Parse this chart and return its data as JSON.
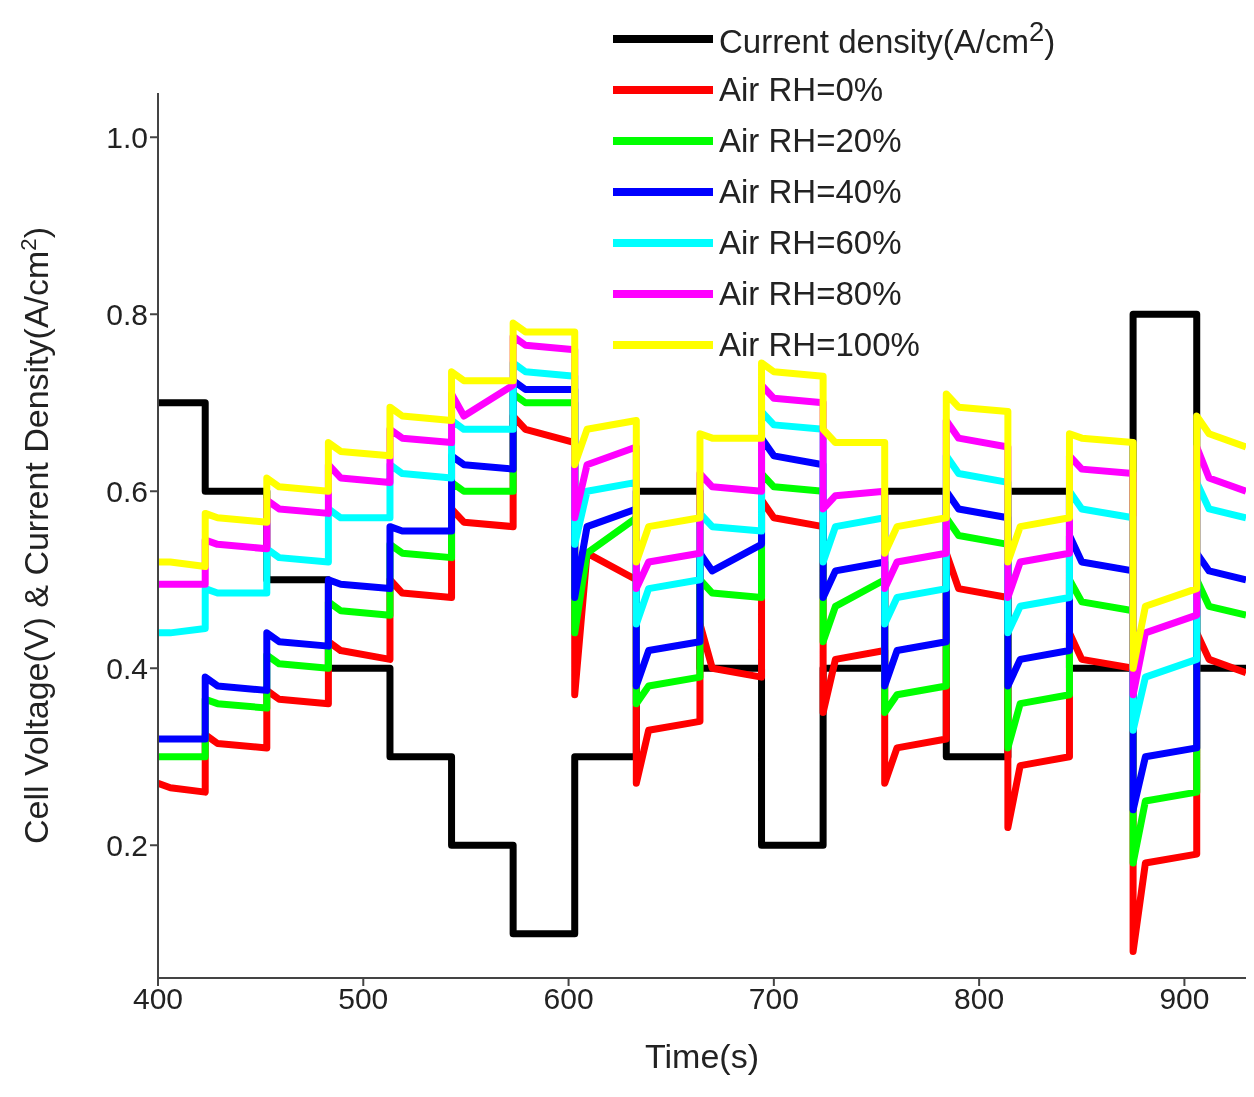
{
  "chart_data": {
    "type": "line",
    "xlabel": "Time(s)",
    "ylabel": "Cell Voltage(V) & Current Density(A/cm$^{2}$)",
    "xlim": [
      400,
      930
    ],
    "xticks": [
      400,
      500,
      600,
      700,
      800,
      900
    ],
    "ylim": [
      0.05,
      1.05
    ],
    "yticks": [
      0.2,
      0.4,
      0.6,
      0.8,
      {
        "value": 1,
        "label": "1.0"
      }
    ],
    "grid": false,
    "legend": "top right",
    "marker": "none",
    "line_style": "solid",
    "x": [
      400,
      406,
      423,
      423,
      429,
      453,
      453,
      459,
      483,
      483,
      489,
      513,
      513,
      519,
      543,
      543,
      549,
      573,
      573,
      579,
      603,
      603,
      609,
      633,
      633,
      639,
      664,
      664,
      670,
      694,
      694,
      700,
      724,
      724,
      730,
      754,
      754,
      760,
      784,
      784,
      790,
      814,
      814,
      820,
      844,
      844,
      850,
      875,
      875,
      881,
      906,
      906,
      912,
      930
    ],
    "series": [
      {
        "name": "Current density(A/cm$^{2}$)",
        "type": "step",
        "color": "#000000",
        "x": [
          400,
          423,
          453,
          483,
          513,
          543,
          573,
          603,
          633,
          664,
          694,
          724,
          754,
          784,
          814,
          844,
          875,
          906,
          930
        ],
        "values": [
          0.7,
          0.6,
          0.5,
          0.4,
          0.3,
          0.2,
          0.1,
          0.3,
          0.6,
          0.4,
          0.2,
          0.4,
          0.6,
          0.3,
          0.6,
          0.4,
          0.8,
          0.4,
          0.4
        ]
      },
      {
        "name": "Air RH=0%",
        "color": "#ff0000",
        "values": [
          0.27,
          0.265,
          0.26,
          0.325,
          0.315,
          0.31,
          0.375,
          0.365,
          0.36,
          0.43,
          0.42,
          0.41,
          0.5,
          0.485,
          0.48,
          0.58,
          0.565,
          0.56,
          0.685,
          0.67,
          0.655,
          0.37,
          0.53,
          0.5,
          0.27,
          0.33,
          0.34,
          0.45,
          0.4,
          0.39,
          0.59,
          0.57,
          0.56,
          0.35,
          0.41,
          0.42,
          0.27,
          0.31,
          0.32,
          0.53,
          0.49,
          0.48,
          0.22,
          0.29,
          0.3,
          0.44,
          0.41,
          0.4,
          0.08,
          0.18,
          0.19,
          0.44,
          0.41,
          0.395
        ]
      },
      {
        "name": "Air RH=20%",
        "color": "#00ff00",
        "values": [
          0.3,
          0.3,
          0.3,
          0.365,
          0.36,
          0.355,
          0.415,
          0.405,
          0.4,
          0.475,
          0.465,
          0.46,
          0.54,
          0.53,
          0.525,
          0.61,
          0.6,
          0.6,
          0.71,
          0.7,
          0.7,
          0.44,
          0.53,
          0.57,
          0.36,
          0.38,
          0.39,
          0.5,
          0.485,
          0.48,
          0.62,
          0.605,
          0.6,
          0.43,
          0.47,
          0.5,
          0.35,
          0.37,
          0.38,
          0.57,
          0.55,
          0.54,
          0.31,
          0.36,
          0.37,
          0.5,
          0.475,
          0.465,
          0.18,
          0.25,
          0.26,
          0.5,
          0.47,
          0.46
        ]
      },
      {
        "name": "Air RH=40%",
        "color": "#0000ff",
        "values": [
          0.32,
          0.32,
          0.32,
          0.39,
          0.38,
          0.375,
          0.44,
          0.43,
          0.425,
          0.5,
          0.495,
          0.49,
          0.56,
          0.555,
          0.555,
          0.64,
          0.63,
          0.625,
          0.725,
          0.715,
          0.715,
          0.48,
          0.56,
          0.58,
          0.38,
          0.42,
          0.43,
          0.53,
          0.51,
          0.54,
          0.66,
          0.64,
          0.63,
          0.48,
          0.51,
          0.52,
          0.38,
          0.42,
          0.43,
          0.6,
          0.58,
          0.57,
          0.38,
          0.41,
          0.42,
          0.55,
          0.52,
          0.51,
          0.24,
          0.3,
          0.31,
          0.53,
          0.51,
          0.5
        ]
      },
      {
        "name": "Air RH=60%",
        "color": "#00ffff",
        "values": [
          0.44,
          0.44,
          0.445,
          0.49,
          0.485,
          0.485,
          0.535,
          0.525,
          0.52,
          0.58,
          0.57,
          0.57,
          0.63,
          0.62,
          0.615,
          0.68,
          0.67,
          0.67,
          0.745,
          0.735,
          0.73,
          0.54,
          0.6,
          0.61,
          0.45,
          0.49,
          0.5,
          0.575,
          0.56,
          0.555,
          0.69,
          0.675,
          0.67,
          0.52,
          0.56,
          0.57,
          0.45,
          0.48,
          0.49,
          0.64,
          0.62,
          0.61,
          0.44,
          0.47,
          0.48,
          0.6,
          0.58,
          0.57,
          0.33,
          0.39,
          0.41,
          0.61,
          0.58,
          0.57
        ]
      },
      {
        "name": "Air RH=80%",
        "color": "#ff00ff",
        "values": [
          0.495,
          0.495,
          0.495,
          0.545,
          0.54,
          0.535,
          0.59,
          0.58,
          0.575,
          0.63,
          0.615,
          0.61,
          0.67,
          0.66,
          0.655,
          0.71,
          0.685,
          0.72,
          0.775,
          0.765,
          0.76,
          0.57,
          0.63,
          0.65,
          0.49,
          0.52,
          0.53,
          0.62,
          0.605,
          0.6,
          0.72,
          0.705,
          0.7,
          0.58,
          0.595,
          0.6,
          0.49,
          0.52,
          0.53,
          0.68,
          0.66,
          0.65,
          0.48,
          0.52,
          0.53,
          0.64,
          0.625,
          0.62,
          0.37,
          0.44,
          0.46,
          0.65,
          0.615,
          0.6
        ]
      },
      {
        "name": "Air RH=100%",
        "color": "#ffff00",
        "values": [
          0.52,
          0.52,
          0.515,
          0.575,
          0.57,
          0.565,
          0.615,
          0.605,
          0.6,
          0.655,
          0.645,
          0.64,
          0.695,
          0.685,
          0.68,
          0.735,
          0.725,
          0.725,
          0.79,
          0.78,
          0.78,
          0.63,
          0.67,
          0.68,
          0.52,
          0.56,
          0.57,
          0.665,
          0.66,
          0.66,
          0.745,
          0.735,
          0.73,
          0.67,
          0.655,
          0.655,
          0.53,
          0.56,
          0.57,
          0.71,
          0.695,
          0.69,
          0.52,
          0.56,
          0.57,
          0.665,
          0.66,
          0.655,
          0.4,
          0.47,
          0.49,
          0.685,
          0.665,
          0.65
        ]
      }
    ]
  }
}
